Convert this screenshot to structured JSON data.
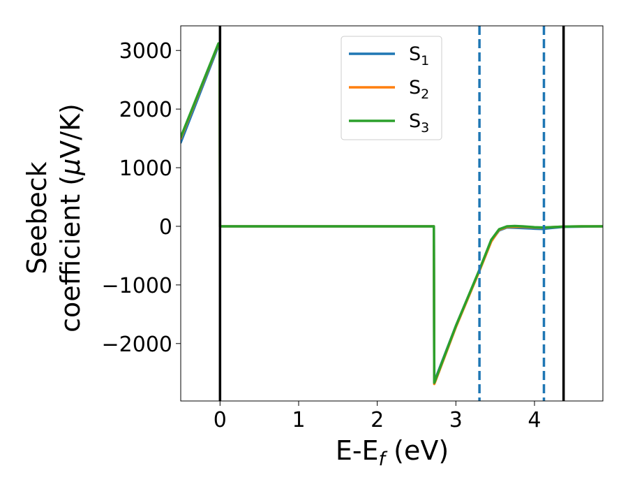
{
  "chart_data": {
    "type": "line",
    "title": "",
    "xlabel": {
      "main": "E-E",
      "sub": "f",
      "unit": " (eV)"
    },
    "ylabel": {
      "line1": "Seebeck",
      "line2_text": "coefficient  (",
      "line2_mu": "μ",
      "line2_unit": "V/K)"
    },
    "xlim": [
      -0.5,
      4.87
    ],
    "ylim": [
      -2980,
      3420
    ],
    "xticks": [
      0,
      1,
      2,
      3,
      4
    ],
    "xtick_labels": [
      "0",
      "1",
      "2",
      "3",
      "4"
    ],
    "yticks": [
      -2000,
      -1000,
      0,
      1000,
      2000,
      3000
    ],
    "ytick_labels": [
      "−2000",
      "−1000",
      "0",
      "1000",
      "2000",
      "3000"
    ],
    "grid": false,
    "legend_position": "upper-center",
    "vertical_lines": [
      {
        "x": 0.0,
        "style": "solid",
        "color": "#000000"
      },
      {
        "x": 3.3,
        "style": "dashed",
        "color": "#1f77b4"
      },
      {
        "x": 4.12,
        "style": "dashed",
        "color": "#1f77b4"
      },
      {
        "x": 4.37,
        "style": "solid",
        "color": "#000000"
      }
    ],
    "series": [
      {
        "name": "S",
        "sub": "1",
        "color": "#1f77b4",
        "x": [
          -0.5,
          -0.02,
          -0.005,
          0.0,
          0.02,
          1.0,
          2.0,
          2.72,
          2.725,
          2.74,
          3.0,
          3.3,
          3.45,
          3.55,
          3.65,
          3.75,
          3.85,
          4.0,
          4.1,
          4.2,
          4.37,
          4.6,
          4.87
        ],
        "y": [
          1430,
          3080,
          3080,
          0,
          0,
          0,
          0,
          0,
          -2650,
          -2600,
          -1700,
          -750,
          -250,
          -70,
          -20,
          -25,
          -30,
          -40,
          -45,
          -30,
          -10,
          -5,
          0
        ]
      },
      {
        "name": "S",
        "sub": "2",
        "color": "#ff7f0e",
        "x": [
          -0.5,
          -0.02,
          -0.005,
          0.0,
          0.02,
          1.0,
          2.0,
          2.72,
          2.725,
          2.74,
          3.0,
          3.3,
          3.45,
          3.55,
          3.65,
          3.75,
          3.85,
          4.0,
          4.1,
          4.2,
          4.37,
          4.6,
          4.87
        ],
        "y": [
          1500,
          3110,
          3110,
          0,
          0,
          0,
          0,
          0,
          -2690,
          -2640,
          -1720,
          -760,
          -260,
          -60,
          -10,
          -10,
          -10,
          -20,
          -25,
          -15,
          -5,
          0,
          0
        ]
      },
      {
        "name": "S",
        "sub": "3",
        "color": "#2ca02c",
        "x": [
          -0.5,
          -0.02,
          -0.005,
          0.0,
          0.02,
          1.0,
          2.0,
          2.72,
          2.725,
          2.74,
          3.0,
          3.3,
          3.45,
          3.55,
          3.65,
          3.75,
          3.85,
          4.0,
          4.1,
          4.2,
          4.37,
          4.6,
          4.87
        ],
        "y": [
          1520,
          3120,
          3120,
          0,
          0,
          0,
          0,
          0,
          -2670,
          -2620,
          -1700,
          -740,
          -230,
          -50,
          0,
          5,
          0,
          -15,
          -20,
          -15,
          -5,
          0,
          0
        ]
      }
    ]
  }
}
